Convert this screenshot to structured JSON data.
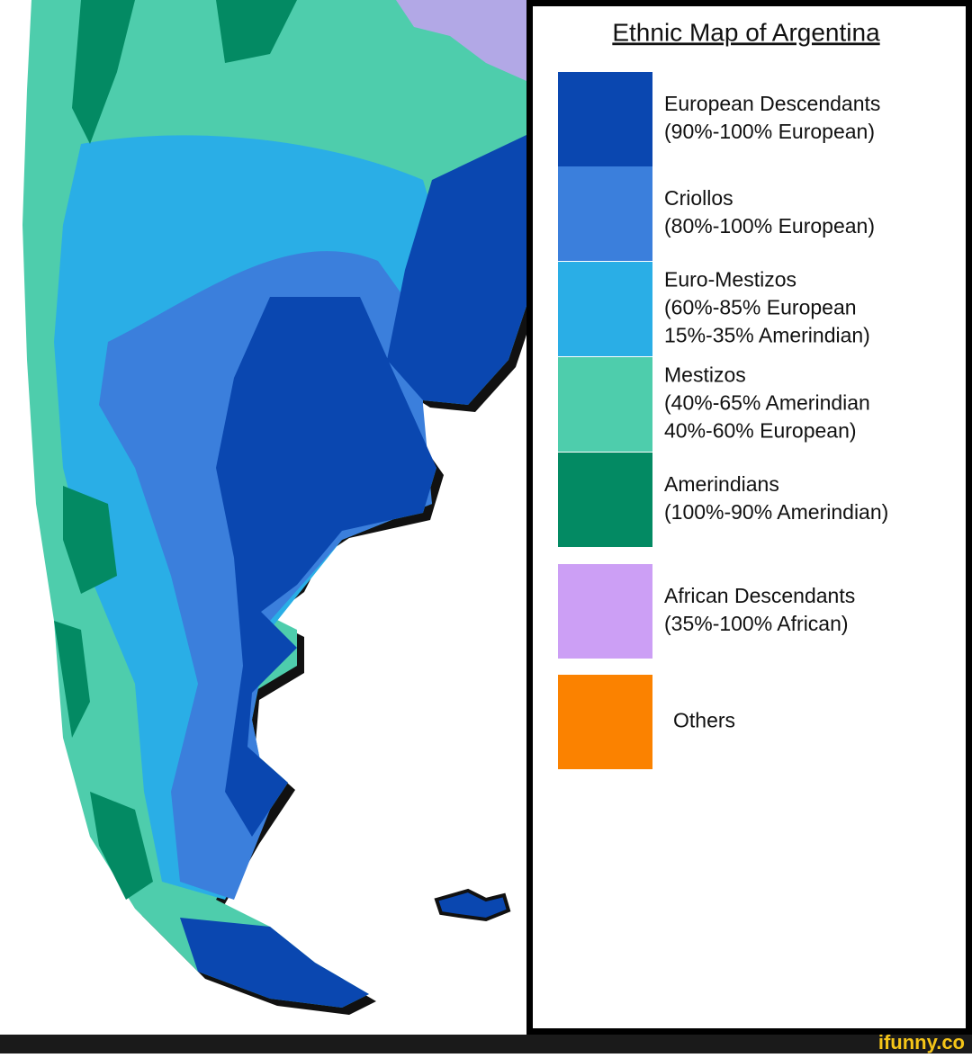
{
  "title": "Ethnic Map of Argentina",
  "legend": [
    {
      "color": "#0a47b0",
      "lines": [
        "European Descendants",
        "(90%-100% European)"
      ]
    },
    {
      "color": "#3b7fdc",
      "lines": [
        "Criollos",
        "(80%-100% European)"
      ]
    },
    {
      "color": "#2aaee6",
      "lines": [
        "Euro-Mestizos",
        "(60%-85% European",
        "15%-35% Amerindian)"
      ]
    },
    {
      "color": "#4ecdac",
      "lines": [
        "Mestizos",
        "(40%-65% Amerindian",
        "40%-60% European)"
      ]
    },
    {
      "color": "#038a63",
      "lines": [
        "Amerindians",
        "(100%-90% Amerindian)"
      ]
    },
    {
      "color": "#cc9ff5",
      "lines": [
        "African Descendants",
        "(35%-100% African)"
      ]
    },
    {
      "color": "#fb8200",
      "lines": [
        "Others"
      ]
    }
  ],
  "watermark": "ifunny.co"
}
